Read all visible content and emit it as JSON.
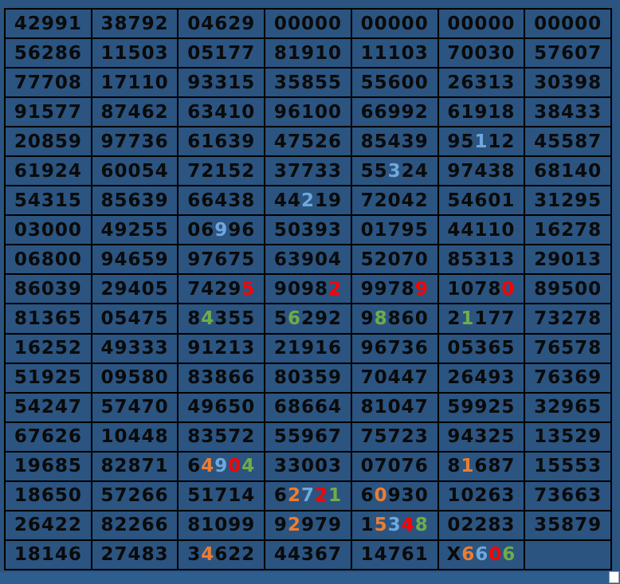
{
  "colors": {
    "cell_bg": "#2b5480",
    "grid_line": "#000000",
    "digit_default": "#0a0a0a",
    "highlight_blue": "#6fa8dc",
    "highlight_red": "#ff0000",
    "highlight_green": "#70ad47",
    "highlight_orange": "#ed7d31",
    "bottom_strip": "#2e5d8f",
    "handle_bg": "#ffffff"
  },
  "table": {
    "columns": 7,
    "color_legend": "per-digit color codes: k=black b=light-blue r=red g=green o=orange",
    "rows": [
      {
        "cells": [
          {
            "text": "42991",
            "colors": "kkkkk"
          },
          {
            "text": "38792",
            "colors": "kkkkk"
          },
          {
            "text": "04629",
            "colors": "kkkkk"
          },
          {
            "text": "00000",
            "colors": "kkkkk"
          },
          {
            "text": "00000",
            "colors": "kkkkk"
          },
          {
            "text": "00000",
            "colors": "kkkkk"
          },
          {
            "text": "00000",
            "colors": "kkkkk"
          }
        ]
      },
      {
        "cells": [
          {
            "text": "56286",
            "colors": "kkkkk"
          },
          {
            "text": "11503",
            "colors": "kkkkk"
          },
          {
            "text": "05177",
            "colors": "kkkkk"
          },
          {
            "text": "81910",
            "colors": "kkkkk"
          },
          {
            "text": "11103",
            "colors": "kkkkk"
          },
          {
            "text": "70030",
            "colors": "kkkkk"
          },
          {
            "text": "57607",
            "colors": "kkkkk"
          }
        ]
      },
      {
        "cells": [
          {
            "text": "77708",
            "colors": "kkkkk"
          },
          {
            "text": "17110",
            "colors": "kkkkk"
          },
          {
            "text": "93315",
            "colors": "kkkkk"
          },
          {
            "text": "35855",
            "colors": "kkkkk"
          },
          {
            "text": "55600",
            "colors": "kkkkk"
          },
          {
            "text": "26313",
            "colors": "kkkkk"
          },
          {
            "text": "30398",
            "colors": "kkkkk"
          }
        ]
      },
      {
        "cells": [
          {
            "text": "91577",
            "colors": "kkkkk"
          },
          {
            "text": "87462",
            "colors": "kkkkk"
          },
          {
            "text": "63410",
            "colors": "kkkkk"
          },
          {
            "text": "96100",
            "colors": "kkkkk"
          },
          {
            "text": "66992",
            "colors": "kkkkk"
          },
          {
            "text": "61918",
            "colors": "kkkkk"
          },
          {
            "text": "38433",
            "colors": "kkkkk"
          }
        ]
      },
      {
        "cells": [
          {
            "text": "20859",
            "colors": "kkkkk"
          },
          {
            "text": "97736",
            "colors": "kkkkk"
          },
          {
            "text": "61639",
            "colors": "kkkkk"
          },
          {
            "text": "47526",
            "colors": "kkkkk"
          },
          {
            "text": "85439",
            "colors": "kkkkk"
          },
          {
            "text": "95112",
            "colors": "kkbkk"
          },
          {
            "text": "45587",
            "colors": "kkkkk"
          }
        ]
      },
      {
        "cells": [
          {
            "text": "61924",
            "colors": "kkkkk"
          },
          {
            "text": "60054",
            "colors": "kkkkk"
          },
          {
            "text": "72152",
            "colors": "kkkkk"
          },
          {
            "text": "37733",
            "colors": "kkkkk"
          },
          {
            "text": "55324",
            "colors": "kkbkk"
          },
          {
            "text": "97438",
            "colors": "kkkkk"
          },
          {
            "text": "68140",
            "colors": "kkkkk"
          }
        ]
      },
      {
        "cells": [
          {
            "text": "54315",
            "colors": "kkkkk"
          },
          {
            "text": "85639",
            "colors": "kkkkk"
          },
          {
            "text": "66438",
            "colors": "kkkkk"
          },
          {
            "text": "44219",
            "colors": "kkbkk"
          },
          {
            "text": "72042",
            "colors": "kkkkk"
          },
          {
            "text": "54601",
            "colors": "kkkkk"
          },
          {
            "text": "31295",
            "colors": "kkkkk"
          }
        ]
      },
      {
        "cells": [
          {
            "text": "03000",
            "colors": "kkkkk"
          },
          {
            "text": "49255",
            "colors": "kkkkk"
          },
          {
            "text": "06996",
            "colors": "kkbkk"
          },
          {
            "text": "50393",
            "colors": "kkkkk"
          },
          {
            "text": "01795",
            "colors": "kkkkk"
          },
          {
            "text": "44110",
            "colors": "kkkkk"
          },
          {
            "text": "16278",
            "colors": "kkkkk"
          }
        ]
      },
      {
        "cells": [
          {
            "text": "06800",
            "colors": "kkkkk"
          },
          {
            "text": "94659",
            "colors": "kkkkk"
          },
          {
            "text": "97675",
            "colors": "kkkkk"
          },
          {
            "text": "63904",
            "colors": "kkkkk"
          },
          {
            "text": "52070",
            "colors": "kkkkk"
          },
          {
            "text": "85313",
            "colors": "kkkkk"
          },
          {
            "text": "29013",
            "colors": "kkkkk"
          }
        ]
      },
      {
        "cells": [
          {
            "text": "86039",
            "colors": "kkkkk"
          },
          {
            "text": "29405",
            "colors": "kkkkk"
          },
          {
            "text": "74295",
            "colors": "kkkkr"
          },
          {
            "text": "90982",
            "colors": "kkkkr"
          },
          {
            "text": "99789",
            "colors": "kkkkr"
          },
          {
            "text": "10780",
            "colors": "kkkkr"
          },
          {
            "text": "89500",
            "colors": "kkkkk"
          }
        ]
      },
      {
        "cells": [
          {
            "text": "81365",
            "colors": "kkkkk"
          },
          {
            "text": "05475",
            "colors": "kkkkk"
          },
          {
            "text": "84355",
            "colors": "kgkkk"
          },
          {
            "text": "56292",
            "colors": "kgkkk"
          },
          {
            "text": "98860",
            "colors": "kgkkk"
          },
          {
            "text": "21177",
            "colors": "kgkkk"
          },
          {
            "text": "73278",
            "colors": "kkkkk"
          }
        ]
      },
      {
        "cells": [
          {
            "text": "16252",
            "colors": "kkkkk"
          },
          {
            "text": "49333",
            "colors": "kkkkk"
          },
          {
            "text": "91213",
            "colors": "kkkkk"
          },
          {
            "text": "21916",
            "colors": "kkkkk"
          },
          {
            "text": "96736",
            "colors": "kkkkk"
          },
          {
            "text": "05365",
            "colors": "kkkkk"
          },
          {
            "text": "76578",
            "colors": "kkkkk"
          }
        ]
      },
      {
        "cells": [
          {
            "text": "51925",
            "colors": "kkkkk"
          },
          {
            "text": "09580",
            "colors": "kkkkk"
          },
          {
            "text": "83866",
            "colors": "kkkkk"
          },
          {
            "text": "80359",
            "colors": "kkkkk"
          },
          {
            "text": "70447",
            "colors": "kkkkk"
          },
          {
            "text": "26493",
            "colors": "kkkkk"
          },
          {
            "text": "76369",
            "colors": "kkkkk"
          }
        ]
      },
      {
        "cells": [
          {
            "text": "54247",
            "colors": "kkkkk"
          },
          {
            "text": "57470",
            "colors": "kkkkk"
          },
          {
            "text": "49650",
            "colors": "kkkkk"
          },
          {
            "text": "68664",
            "colors": "kkkkk"
          },
          {
            "text": "81047",
            "colors": "kkkkk"
          },
          {
            "text": "59925",
            "colors": "kkkkk"
          },
          {
            "text": "32965",
            "colors": "kkkkk"
          }
        ]
      },
      {
        "cells": [
          {
            "text": "67626",
            "colors": "kkkkk"
          },
          {
            "text": "10448",
            "colors": "kkkkk"
          },
          {
            "text": "83572",
            "colors": "kkkkk"
          },
          {
            "text": "55967",
            "colors": "kkkkk"
          },
          {
            "text": "75723",
            "colors": "kkkkk"
          },
          {
            "text": "94325",
            "colors": "kkkkk"
          },
          {
            "text": "13529",
            "colors": "kkkkk"
          }
        ]
      },
      {
        "cells": [
          {
            "text": "19685",
            "colors": "kkkkk"
          },
          {
            "text": "82871",
            "colors": "kkkkk"
          },
          {
            "text": "64904",
            "colors": "kobrg"
          },
          {
            "text": "33003",
            "colors": "kkkkk"
          },
          {
            "text": "07076",
            "colors": "kkkkk"
          },
          {
            "text": "81687",
            "colors": "kokkk"
          },
          {
            "text": "15553",
            "colors": "kkkkk"
          }
        ]
      },
      {
        "cells": [
          {
            "text": "18650",
            "colors": "kkkkk"
          },
          {
            "text": "57266",
            "colors": "kkkkk"
          },
          {
            "text": "51714",
            "colors": "kkkkk"
          },
          {
            "text": "62721",
            "colors": "kobrg"
          },
          {
            "text": "60930",
            "colors": "kokkk"
          },
          {
            "text": "10263",
            "colors": "kkkkk"
          },
          {
            "text": "73663",
            "colors": "kkkkk"
          }
        ]
      },
      {
        "cells": [
          {
            "text": "26422",
            "colors": "kkkkk"
          },
          {
            "text": "82266",
            "colors": "kkkkk"
          },
          {
            "text": "81099",
            "colors": "kkkkk"
          },
          {
            "text": "92979",
            "colors": "kokkk"
          },
          {
            "text": "15348",
            "colors": "kobrg"
          },
          {
            "text": "02283",
            "colors": "kkkkk"
          },
          {
            "text": "35879",
            "colors": "kkkkk"
          }
        ]
      },
      {
        "cells": [
          {
            "text": "18146",
            "colors": "kkkkk"
          },
          {
            "text": "27483",
            "colors": "kkkkk"
          },
          {
            "text": "34622",
            "colors": "kokkk"
          },
          {
            "text": "44367",
            "colors": "kkkkk"
          },
          {
            "text": "14761",
            "colors": "kkkkk"
          },
          {
            "text": "X6606",
            "colors": "kobrg"
          },
          {
            "text": "",
            "colors": ""
          }
        ]
      }
    ]
  }
}
